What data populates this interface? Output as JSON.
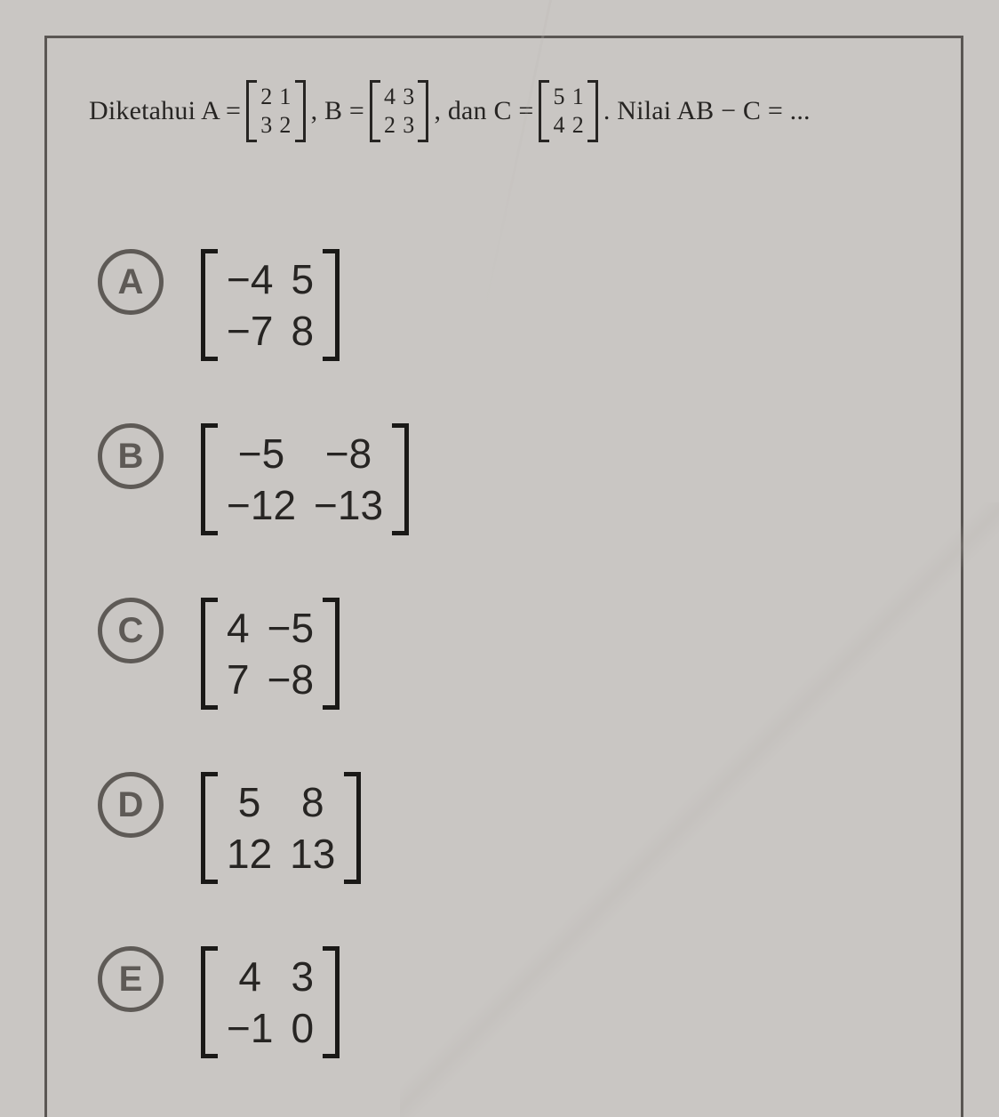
{
  "question": {
    "lead": "Diketahui A =",
    "mA": [
      [
        "2",
        "1"
      ],
      [
        "3",
        "2"
      ]
    ],
    "sepB": ",  B =",
    "mB": [
      [
        "4",
        "3"
      ],
      [
        "2",
        "3"
      ]
    ],
    "sepC": ", dan C =",
    "mC": [
      [
        "5",
        "1"
      ],
      [
        "4",
        "2"
      ]
    ],
    "tail": ". Nilai AB − C = ..."
  },
  "options": [
    {
      "key": "A",
      "m": [
        [
          "−4",
          "5"
        ],
        [
          "−7",
          "8"
        ]
      ]
    },
    {
      "key": "B",
      "m": [
        [
          "−5",
          "−8"
        ],
        [
          "−12",
          "−13"
        ]
      ]
    },
    {
      "key": "C",
      "m": [
        [
          "4",
          "−5"
        ],
        [
          "7",
          "−8"
        ]
      ]
    },
    {
      "key": "D",
      "m": [
        [
          "5",
          "8"
        ],
        [
          "12",
          "13"
        ]
      ]
    },
    {
      "key": "E",
      "m": [
        [
          "4",
          "3"
        ],
        [
          "−1",
          "0"
        ]
      ]
    }
  ]
}
